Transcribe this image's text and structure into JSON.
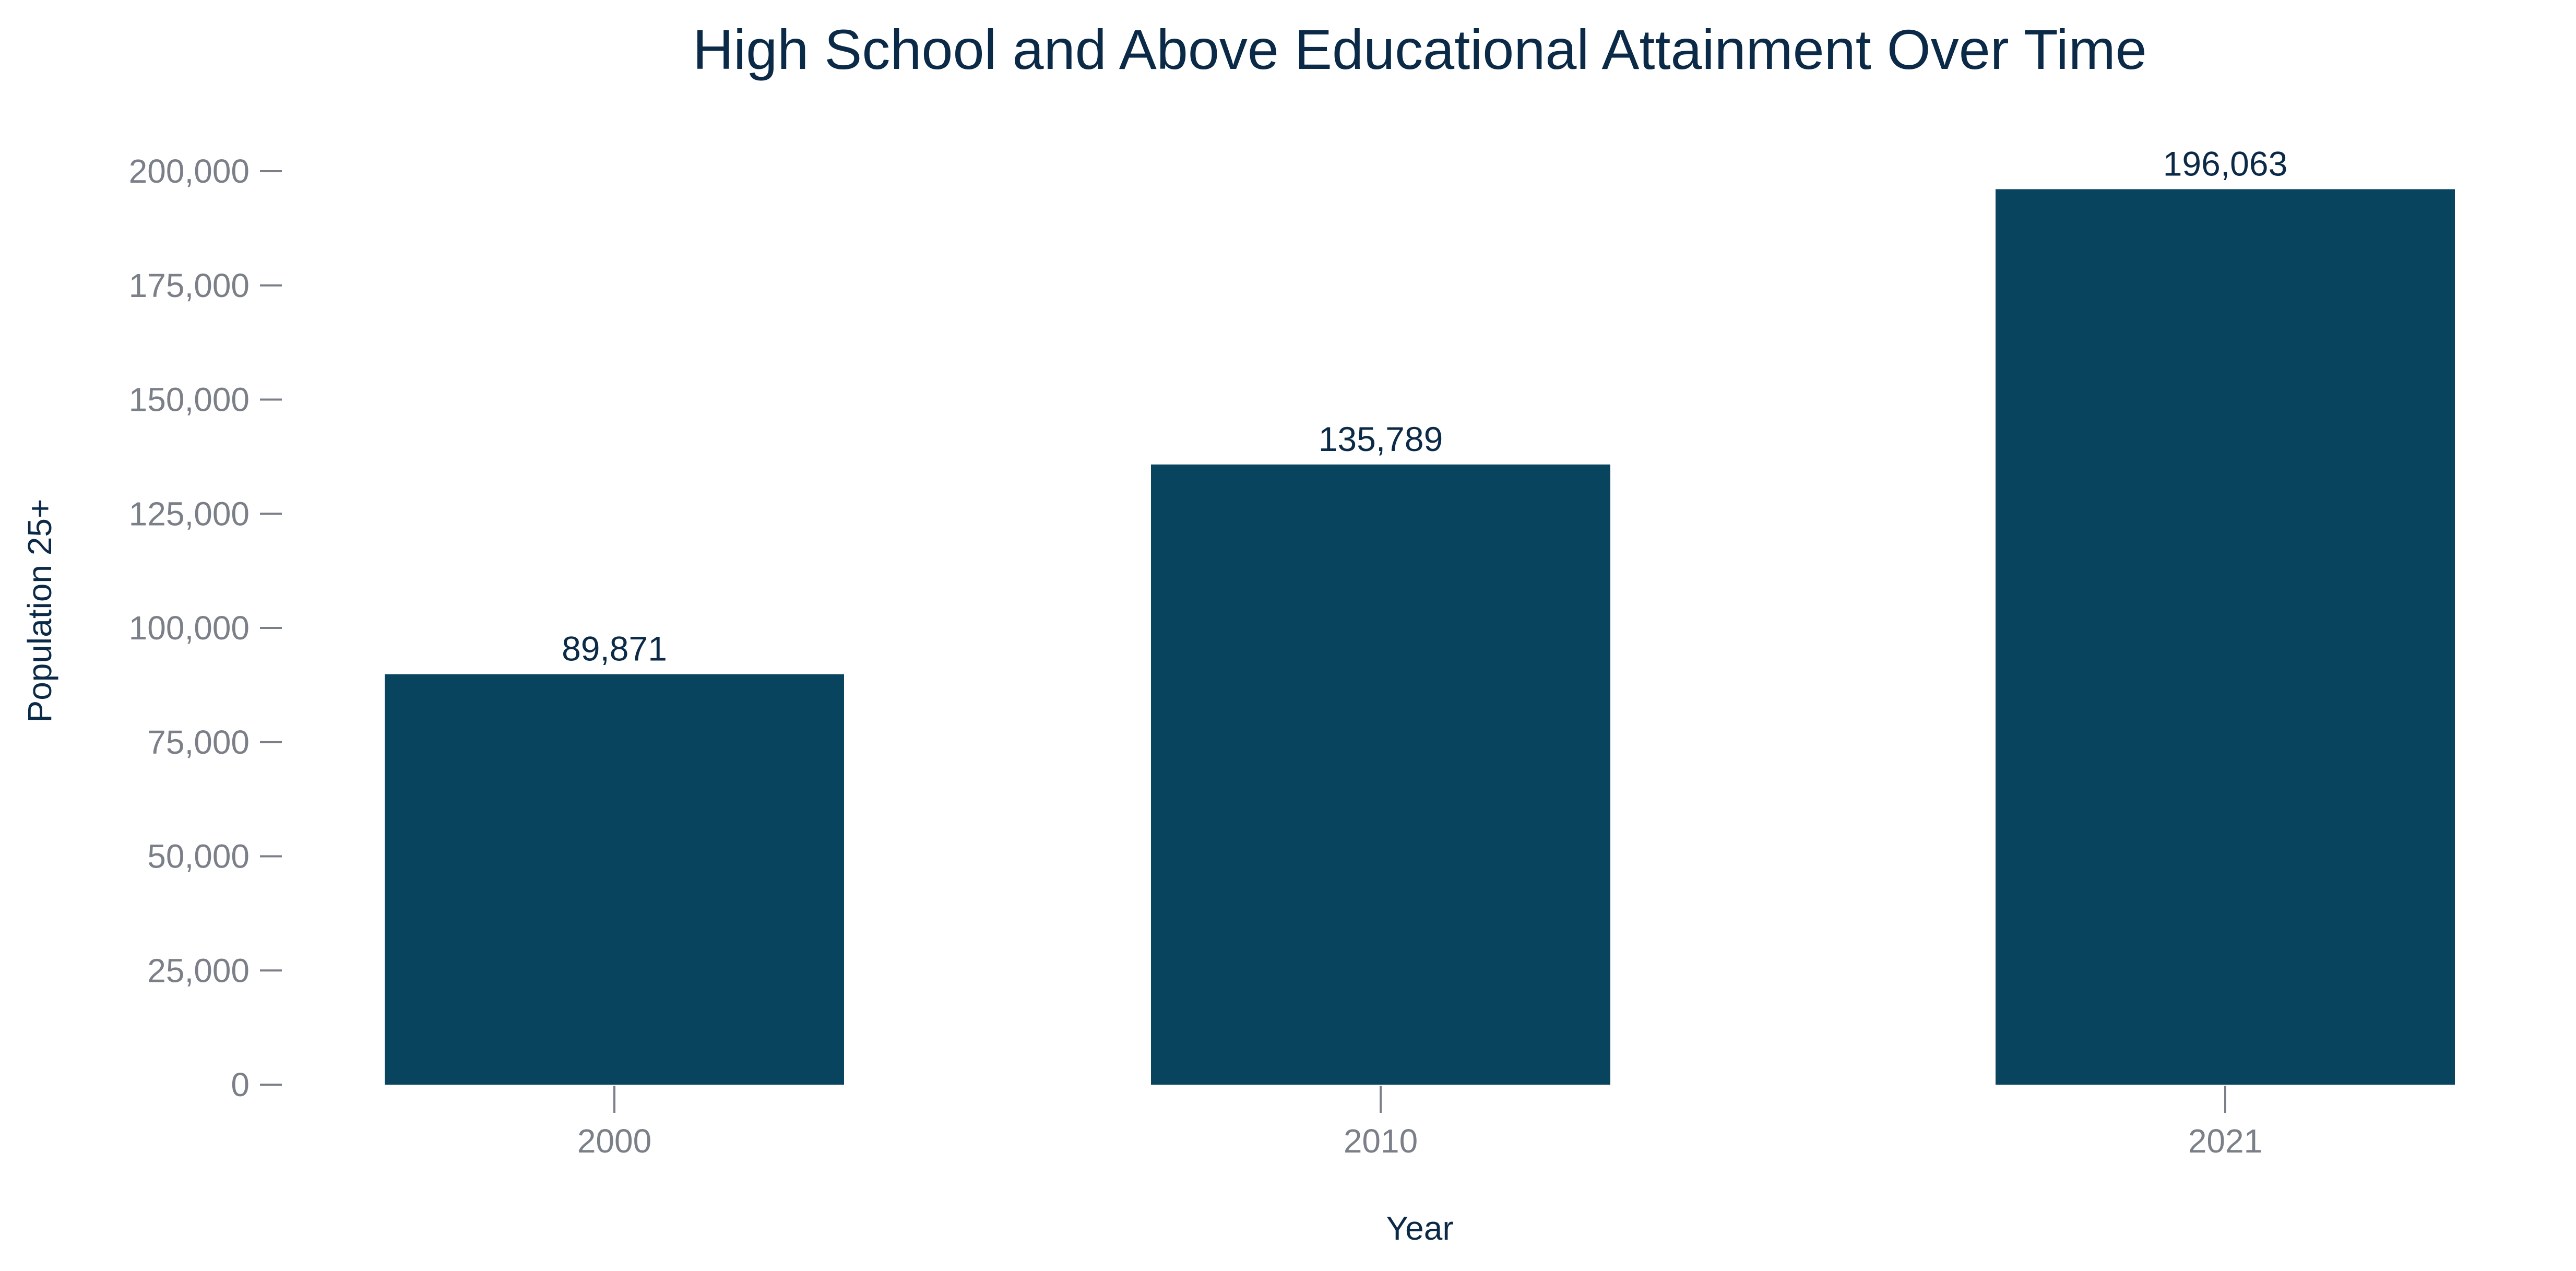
{
  "chart_data": {
    "type": "bar",
    "title": "High School and Above Educational Attainment Over Time",
    "xlabel": "Year",
    "ylabel": "Population 25+",
    "categories": [
      "2000",
      "2010",
      "2021"
    ],
    "values": [
      89871,
      135789,
      196063
    ],
    "value_labels": [
      "89,871",
      "135,789",
      "196,063"
    ],
    "ylim": [
      0,
      200000
    ],
    "yticks": [
      0,
      25000,
      50000,
      75000,
      100000,
      125000,
      150000,
      175000,
      200000
    ],
    "ytick_labels": [
      "0",
      "25,000",
      "50,000",
      "75,000",
      "100,000",
      "125,000",
      "150,000",
      "175,000",
      "200,000"
    ],
    "grid": false,
    "legend": "none",
    "bar_color": "#08445e"
  }
}
